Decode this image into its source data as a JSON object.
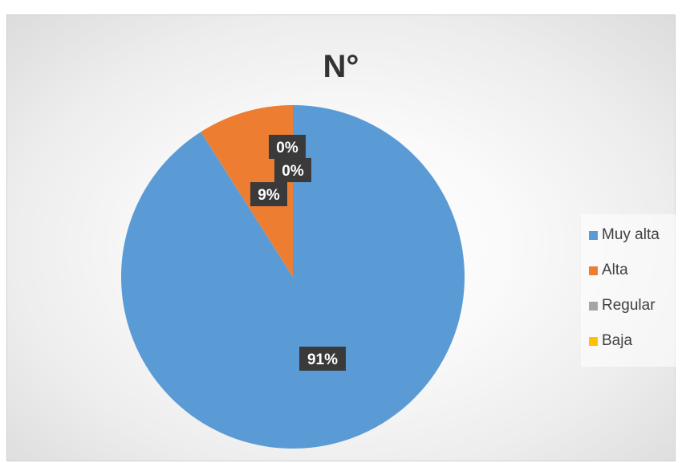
{
  "chart_data": {
    "type": "pie",
    "title": "N°",
    "categories": [
      "Muy alta",
      "Alta",
      "Regular",
      "Baja"
    ],
    "values": [
      91,
      9,
      0,
      0
    ],
    "value_format": "percent",
    "data_labels": [
      "91%",
      "9%",
      "0%",
      "0%"
    ],
    "colors": [
      "#5b9bd5",
      "#ed7d31",
      "#a5a5a5",
      "#ffc000"
    ],
    "legend_position": "right"
  }
}
